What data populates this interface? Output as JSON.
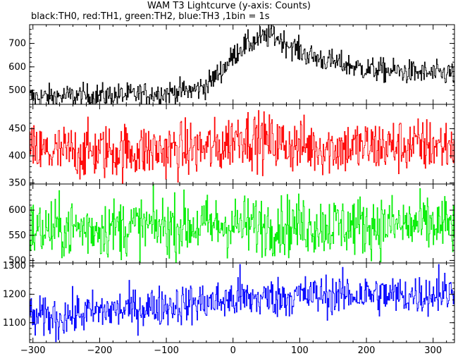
{
  "chart_data": {
    "type": "line",
    "title": "WAM T3 Lightcurve (y-axis: Counts)",
    "subtitle": "black:TH0, red:TH1, green:TH2, blue:TH3 ,1bin = 1s",
    "x": {
      "min": -305,
      "max": 332,
      "step": 1,
      "ticks": [
        -300,
        -200,
        -100,
        0,
        100,
        200,
        300
      ]
    },
    "series": [
      {
        "name": "TH0",
        "color": "#000000",
        "ylim": [
          440,
          780
        ],
        "yticks": [
          500,
          600,
          700
        ],
        "base": {
          "x": [
            -305,
            -250,
            -150,
            -100,
            -60,
            -40,
            -10,
            10,
            40,
            60,
            80,
            110,
            150,
            200,
            250,
            300,
            332
          ],
          "y": [
            470,
            475,
            480,
            490,
            500,
            520,
            610,
            680,
            720,
            735,
            700,
            650,
            620,
            590,
            580,
            570,
            572
          ]
        },
        "noise": 26,
        "outliers": []
      },
      {
        "name": "TH1",
        "color": "#ff0000",
        "ylim": [
          348,
          495
        ],
        "yticks": [
          350,
          400,
          450
        ],
        "base": {
          "x": [
            -305,
            -200,
            -100,
            -20,
            10,
            40,
            80,
            150,
            250,
            332
          ],
          "y": [
            405,
            408,
            410,
            415,
            440,
            428,
            420,
            415,
            418,
            420
          ]
        },
        "noise": 26,
        "outliers": []
      },
      {
        "name": "TH2",
        "color": "#00ee00",
        "ylim": [
          495,
          652
        ],
        "yticks": [
          500,
          550,
          600
        ],
        "base": {
          "x": [
            -305,
            -200,
            -100,
            0,
            100,
            200,
            332
          ],
          "y": [
            560,
            565,
            568,
            570,
            570,
            570,
            570
          ]
        },
        "noise": 30,
        "outliers": []
      },
      {
        "name": "TH3",
        "color": "#0000ff",
        "ylim": [
          1030,
          1310
        ],
        "yticks": [
          1100,
          1200,
          1300
        ],
        "base": {
          "x": [
            -305,
            -250,
            -200,
            -150,
            -100,
            -50,
            0,
            100,
            200,
            250,
            300,
            332
          ],
          "y": [
            1115,
            1125,
            1140,
            1150,
            1160,
            1170,
            1180,
            1195,
            1200,
            1195,
            1200,
            1205
          ]
        },
        "noise": 36,
        "outliers": [
          [
            10,
            1305
          ],
          [
            308,
            1305
          ],
          [
            -262,
            1040
          ]
        ]
      }
    ]
  }
}
